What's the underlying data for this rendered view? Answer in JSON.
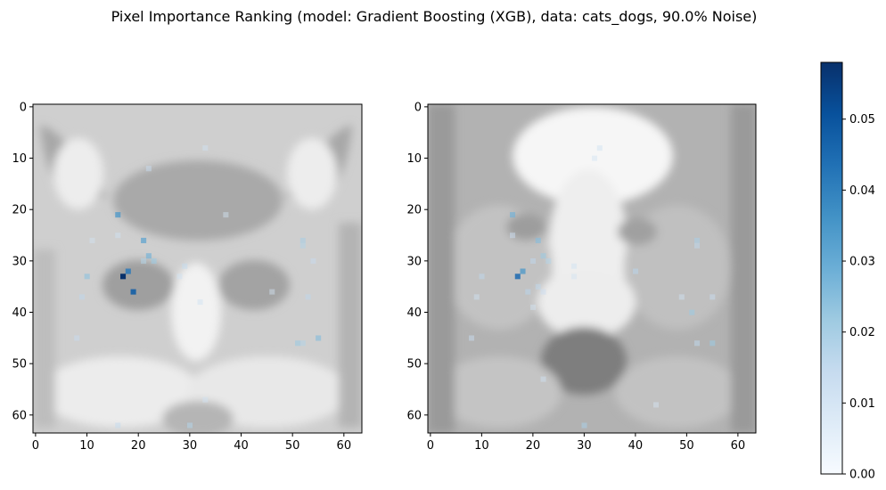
{
  "figure": {
    "title": "Pixel Importance Ranking (model: Gradient Boosting (XGB), data: cats_dogs, 90.0% Noise)"
  },
  "chart_data": [
    {
      "type": "heatmap",
      "panel": "left",
      "background": "grayscale cat face image",
      "xlim": [
        0,
        63
      ],
      "ylim": [
        63,
        0
      ],
      "xticks": [
        "0",
        "10",
        "20",
        "30",
        "40",
        "50",
        "60"
      ],
      "yticks": [
        "0",
        "10",
        "20",
        "30",
        "40",
        "50",
        "60"
      ],
      "colormap": "Blues",
      "points": [
        {
          "x": 17,
          "y": 33,
          "v": 0.058
        },
        {
          "x": 18,
          "y": 32,
          "v": 0.042
        },
        {
          "x": 19,
          "y": 36,
          "v": 0.048
        },
        {
          "x": 16,
          "y": 21,
          "v": 0.035
        },
        {
          "x": 21,
          "y": 26,
          "v": 0.032
        },
        {
          "x": 22,
          "y": 29,
          "v": 0.028
        },
        {
          "x": 23,
          "y": 30,
          "v": 0.022
        },
        {
          "x": 21,
          "y": 30,
          "v": 0.018
        },
        {
          "x": 22,
          "y": 12,
          "v": 0.014
        },
        {
          "x": 16,
          "y": 25,
          "v": 0.012
        },
        {
          "x": 10,
          "y": 33,
          "v": 0.024
        },
        {
          "x": 9,
          "y": 37,
          "v": 0.016
        },
        {
          "x": 8,
          "y": 45,
          "v": 0.014
        },
        {
          "x": 29,
          "y": 31,
          "v": 0.015
        },
        {
          "x": 28,
          "y": 33,
          "v": 0.012
        },
        {
          "x": 33,
          "y": 8,
          "v": 0.012
        },
        {
          "x": 37,
          "y": 21,
          "v": 0.011
        },
        {
          "x": 32,
          "y": 38,
          "v": 0.012
        },
        {
          "x": 52,
          "y": 26,
          "v": 0.02
        },
        {
          "x": 52,
          "y": 27,
          "v": 0.018
        },
        {
          "x": 54,
          "y": 30,
          "v": 0.014
        },
        {
          "x": 53,
          "y": 37,
          "v": 0.016
        },
        {
          "x": 51,
          "y": 46,
          "v": 0.022
        },
        {
          "x": 52,
          "y": 46,
          "v": 0.018
        },
        {
          "x": 55,
          "y": 45,
          "v": 0.025
        },
        {
          "x": 46,
          "y": 36,
          "v": 0.011
        },
        {
          "x": 16,
          "y": 62,
          "v": 0.015
        },
        {
          "x": 30,
          "y": 62,
          "v": 0.018
        },
        {
          "x": 33,
          "y": 57,
          "v": 0.012
        },
        {
          "x": 11,
          "y": 26,
          "v": 0.011
        }
      ]
    },
    {
      "type": "heatmap",
      "panel": "right",
      "background": "grayscale dog face image",
      "xlim": [
        0,
        63
      ],
      "ylim": [
        63,
        0
      ],
      "xticks": [
        "0",
        "10",
        "20",
        "30",
        "40",
        "50",
        "60"
      ],
      "yticks": [
        "0",
        "10",
        "20",
        "30",
        "40",
        "50",
        "60"
      ],
      "colormap": "Blues",
      "points": [
        {
          "x": 17,
          "y": 33,
          "v": 0.045
        },
        {
          "x": 18,
          "y": 32,
          "v": 0.035
        },
        {
          "x": 16,
          "y": 21,
          "v": 0.028
        },
        {
          "x": 21,
          "y": 26,
          "v": 0.025
        },
        {
          "x": 22,
          "y": 29,
          "v": 0.022
        },
        {
          "x": 23,
          "y": 30,
          "v": 0.018
        },
        {
          "x": 20,
          "y": 30,
          "v": 0.016
        },
        {
          "x": 21,
          "y": 35,
          "v": 0.016
        },
        {
          "x": 22,
          "y": 36,
          "v": 0.013
        },
        {
          "x": 19,
          "y": 36,
          "v": 0.017
        },
        {
          "x": 16,
          "y": 25,
          "v": 0.013
        },
        {
          "x": 10,
          "y": 33,
          "v": 0.016
        },
        {
          "x": 9,
          "y": 37,
          "v": 0.012
        },
        {
          "x": 8,
          "y": 45,
          "v": 0.014
        },
        {
          "x": 28,
          "y": 31,
          "v": 0.012
        },
        {
          "x": 28,
          "y": 33,
          "v": 0.011
        },
        {
          "x": 20,
          "y": 39,
          "v": 0.011
        },
        {
          "x": 33,
          "y": 8,
          "v": 0.012
        },
        {
          "x": 32,
          "y": 10,
          "v": 0.011
        },
        {
          "x": 40,
          "y": 32,
          "v": 0.017
        },
        {
          "x": 52,
          "y": 26,
          "v": 0.02
        },
        {
          "x": 52,
          "y": 27,
          "v": 0.016
        },
        {
          "x": 51,
          "y": 40,
          "v": 0.022
        },
        {
          "x": 49,
          "y": 37,
          "v": 0.012
        },
        {
          "x": 55,
          "y": 37,
          "v": 0.014
        },
        {
          "x": 55,
          "y": 46,
          "v": 0.022
        },
        {
          "x": 52,
          "y": 46,
          "v": 0.016
        },
        {
          "x": 30,
          "y": 62,
          "v": 0.02
        },
        {
          "x": 22,
          "y": 53,
          "v": 0.012
        },
        {
          "x": 44,
          "y": 58,
          "v": 0.01
        }
      ]
    },
    {
      "type": "colorbar",
      "colormap": "Blues",
      "range": [
        0,
        0.058
      ],
      "ticks": [
        "0.00",
        "0.01",
        "0.02",
        "0.03",
        "0.04",
        "0.05"
      ],
      "tick_values": [
        0,
        0.01,
        0.02,
        0.03,
        0.04,
        0.05
      ]
    }
  ]
}
